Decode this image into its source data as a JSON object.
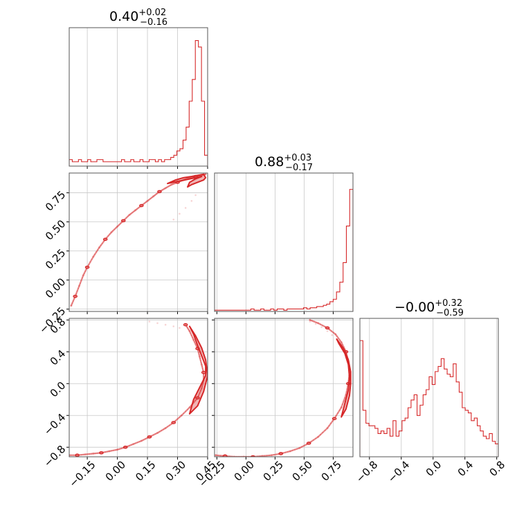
{
  "chart_data": {
    "type": "corner",
    "color": "#d62728",
    "grid": true,
    "parameters": [
      {
        "id": "p0",
        "range": [
          -0.24,
          0.45
        ],
        "ticks": [
          -0.15,
          0.0,
          0.15,
          0.3,
          0.45
        ],
        "tick_labels": [
          "−0.15",
          "0.00",
          "0.15",
          "0.30",
          "0.45"
        ]
      },
      {
        "id": "p1",
        "range": [
          -0.27,
          0.92
        ],
        "ticks": [
          -0.25,
          0.0,
          0.25,
          0.5,
          0.75
        ],
        "tick_labels": [
          "−0.25",
          "0.00",
          "0.25",
          "0.50",
          "0.75"
        ]
      },
      {
        "id": "p2",
        "range": [
          -0.92,
          0.82
        ],
        "ticks": [
          -0.8,
          -0.4,
          0.0,
          0.4,
          0.8
        ],
        "tick_labels": [
          "−0.8",
          "−0.4",
          "0.0",
          "0.4",
          "0.8"
        ]
      }
    ],
    "titles": [
      {
        "value": "0.40",
        "plus": "+0.02",
        "minus": "−0.16"
      },
      {
        "value": "0.88",
        "plus": "+0.03",
        "minus": "−0.17"
      },
      {
        "value": "−0.00",
        "plus": "+0.32",
        "minus": "−0.59"
      }
    ],
    "histograms": [
      {
        "param": 0,
        "counts": [
          3,
          2,
          2,
          3,
          2,
          2,
          3,
          2,
          2,
          3,
          3,
          2,
          2,
          2,
          2,
          2,
          2,
          3,
          2,
          2,
          3,
          2,
          2,
          3,
          2,
          2,
          3,
          3,
          2,
          3,
          2,
          3,
          3,
          4,
          5,
          7,
          8,
          12,
          18,
          30,
          40,
          58,
          55,
          30,
          5
        ],
        "max": 62
      },
      {
        "param": 1,
        "counts": [
          0.5,
          0.5,
          0.5,
          0.5,
          0.5,
          0.5,
          0.5,
          0.5,
          0.5,
          0.5,
          0.5,
          1,
          0.5,
          0.5,
          1,
          0.5,
          0.5,
          1,
          0.5,
          1,
          1,
          0.5,
          1,
          1,
          1,
          1,
          1,
          1.5,
          1,
          1.5,
          1.5,
          2,
          2,
          2.5,
          3,
          4,
          5,
          8,
          12,
          20,
          35,
          50
        ],
        "max": 55
      },
      {
        "param": 2,
        "counts": [
          45,
          18,
          13,
          12,
          12,
          11,
          9,
          10,
          9,
          11,
          8,
          14,
          8,
          10,
          14,
          15,
          19,
          22,
          24,
          16,
          20,
          24,
          26,
          31,
          28,
          33,
          35,
          38,
          34,
          32,
          31,
          36,
          29,
          25,
          19,
          18,
          17,
          14,
          15,
          12,
          10,
          8,
          7,
          9,
          6,
          5
        ],
        "max": 52
      }
    ],
    "pairs": [
      {
        "x": 0,
        "y": 1,
        "points": [
          [
            -0.23,
            -0.22
          ],
          [
            -0.21,
            -0.14
          ],
          [
            -0.19,
            -0.05
          ],
          [
            -0.17,
            0.04
          ],
          [
            -0.15,
            0.11
          ],
          [
            -0.12,
            0.2
          ],
          [
            -0.09,
            0.28
          ],
          [
            -0.06,
            0.35
          ],
          [
            -0.03,
            0.41
          ],
          [
            0.0,
            0.46
          ],
          [
            0.03,
            0.51
          ],
          [
            0.06,
            0.56
          ],
          [
            0.09,
            0.6
          ],
          [
            0.12,
            0.64
          ],
          [
            0.15,
            0.68
          ],
          [
            0.18,
            0.72
          ],
          [
            0.21,
            0.76
          ],
          [
            0.24,
            0.79
          ],
          [
            0.27,
            0.82
          ],
          [
            0.3,
            0.84
          ],
          [
            0.33,
            0.86
          ],
          [
            0.36,
            0.88
          ],
          [
            0.39,
            0.89
          ],
          [
            0.42,
            0.9
          ],
          [
            0.44,
            0.91
          ]
        ],
        "ridge": [
          [
            0.25,
            0.83
          ],
          [
            0.29,
            0.86
          ],
          [
            0.33,
            0.88
          ],
          [
            0.37,
            0.89
          ],
          [
            0.4,
            0.9
          ],
          [
            0.43,
            0.91
          ],
          [
            0.44,
            0.88
          ],
          [
            0.43,
            0.86
          ],
          [
            0.4,
            0.84
          ],
          [
            0.37,
            0.82
          ],
          [
            0.35,
            0.8
          ],
          [
            0.36,
            0.84
          ],
          [
            0.39,
            0.87
          ],
          [
            0.42,
            0.89
          ]
        ],
        "secondary": [
          [
            0.28,
            0.52
          ],
          [
            0.31,
            0.57
          ],
          [
            0.34,
            0.62
          ],
          [
            0.37,
            0.68
          ],
          [
            0.39,
            0.73
          ]
        ]
      },
      {
        "x": 0,
        "y": 2,
        "points": [
          [
            -0.24,
            -0.9
          ],
          [
            -0.2,
            -0.9
          ],
          [
            -0.16,
            -0.89
          ],
          [
            -0.12,
            -0.88
          ],
          [
            -0.08,
            -0.87
          ],
          [
            -0.04,
            -0.85
          ],
          [
            0.0,
            -0.83
          ],
          [
            0.04,
            -0.8
          ],
          [
            0.08,
            -0.76
          ],
          [
            0.12,
            -0.72
          ],
          [
            0.16,
            -0.67
          ],
          [
            0.2,
            -0.62
          ],
          [
            0.24,
            -0.56
          ],
          [
            0.28,
            -0.49
          ],
          [
            0.32,
            -0.4
          ],
          [
            0.36,
            -0.3
          ],
          [
            0.4,
            -0.18
          ],
          [
            0.42,
            -0.06
          ],
          [
            0.43,
            0.04
          ],
          [
            0.43,
            0.14
          ],
          [
            0.42,
            0.24
          ],
          [
            0.41,
            0.34
          ],
          [
            0.4,
            0.44
          ],
          [
            0.38,
            0.55
          ],
          [
            0.36,
            0.66
          ],
          [
            0.34,
            0.74
          ]
        ],
        "ridge": [
          [
            0.38,
            -0.2
          ],
          [
            0.41,
            -0.05
          ],
          [
            0.44,
            0.1
          ],
          [
            0.44,
            0.22
          ],
          [
            0.42,
            0.35
          ],
          [
            0.4,
            0.48
          ],
          [
            0.38,
            0.62
          ],
          [
            0.36,
            0.72
          ],
          [
            0.39,
            0.6
          ],
          [
            0.42,
            0.45
          ],
          [
            0.44,
            0.3
          ],
          [
            0.45,
            0.1
          ],
          [
            0.43,
            -0.1
          ],
          [
            0.4,
            -0.28
          ],
          [
            0.36,
            -0.38
          ]
        ],
        "secondary": [
          [
            0.16,
            0.78
          ],
          [
            0.2,
            0.76
          ],
          [
            0.24,
            0.74
          ],
          [
            0.28,
            0.72
          ],
          [
            0.31,
            0.7
          ]
        ]
      },
      {
        "x": 1,
        "y": 2,
        "points": [
          [
            -0.26,
            -0.9
          ],
          [
            -0.18,
            -0.91
          ],
          [
            -0.1,
            -0.92
          ],
          [
            -0.02,
            -0.92
          ],
          [
            0.06,
            -0.92
          ],
          [
            0.14,
            -0.91
          ],
          [
            0.22,
            -0.9
          ],
          [
            0.3,
            -0.88
          ],
          [
            0.38,
            -0.85
          ],
          [
            0.46,
            -0.81
          ],
          [
            0.54,
            -0.75
          ],
          [
            0.62,
            -0.67
          ],
          [
            0.7,
            -0.56
          ],
          [
            0.76,
            -0.44
          ],
          [
            0.82,
            -0.3
          ],
          [
            0.86,
            -0.14
          ],
          [
            0.88,
            0.0
          ],
          [
            0.89,
            0.14
          ],
          [
            0.88,
            0.28
          ],
          [
            0.86,
            0.4
          ],
          [
            0.82,
            0.52
          ],
          [
            0.77,
            0.62
          ],
          [
            0.7,
            0.7
          ],
          [
            0.62,
            0.76
          ],
          [
            0.55,
            0.8
          ]
        ],
        "ridge": [
          [
            0.78,
            0.56
          ],
          [
            0.84,
            0.44
          ],
          [
            0.88,
            0.3
          ],
          [
            0.9,
            0.15
          ],
          [
            0.9,
            0.0
          ],
          [
            0.89,
            -0.15
          ],
          [
            0.86,
            -0.32
          ],
          [
            0.82,
            -0.42
          ],
          [
            0.85,
            -0.25
          ],
          [
            0.88,
            -0.08
          ],
          [
            0.89,
            0.08
          ],
          [
            0.88,
            0.24
          ],
          [
            0.85,
            0.38
          ],
          [
            0.8,
            0.5
          ]
        ],
        "secondary": [
          [
            0.55,
            0.78
          ],
          [
            0.6,
            0.75
          ],
          [
            0.65,
            0.71
          ],
          [
            0.7,
            0.66
          ],
          [
            0.74,
            0.61
          ]
        ]
      }
    ]
  }
}
